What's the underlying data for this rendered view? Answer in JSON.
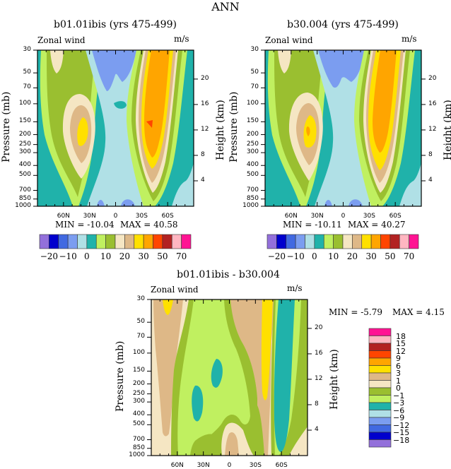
{
  "page_title": "ANN",
  "chart_data": [
    {
      "type": "contour",
      "title": "b01.01ibis (yrs 475-499)",
      "left_label": "Zonal wind",
      "right_label": "m/s",
      "ylabel": "Pressure (mb)",
      "y2label": "Height (km)",
      "x_ticks": [
        "60N",
        "30N",
        "0",
        "30S",
        "60S"
      ],
      "y_ticks": [
        30,
        50,
        70,
        100,
        150,
        200,
        250,
        300,
        400,
        500,
        700,
        850,
        1000
      ],
      "y2_ticks": [
        20,
        16,
        12,
        8,
        4
      ],
      "ylim": [
        1000,
        30
      ],
      "y_scale": "log",
      "min_text": "MIN = -10.04",
      "max_text": "MAX = 40.58",
      "colorbar_labels": [
        "-20",
        "-10",
        "0",
        "10",
        "20",
        "30",
        "50",
        "70"
      ]
    },
    {
      "type": "contour",
      "title": "b30.004 (yrs 475-499)",
      "left_label": "Zonal wind",
      "right_label": "m/s",
      "ylabel": "Pressure (mb)",
      "y2label": "Height (km)",
      "x_ticks": [
        "60N",
        "30N",
        "0",
        "30S",
        "60S"
      ],
      "y_ticks": [
        30,
        50,
        70,
        100,
        150,
        200,
        250,
        300,
        400,
        500,
        700,
        850,
        1000
      ],
      "y2_ticks": [
        20,
        16,
        12,
        8,
        4
      ],
      "ylim": [
        1000,
        30
      ],
      "y_scale": "log",
      "min_text": "MIN = -10.11",
      "max_text": "MAX = 40.27",
      "colorbar_labels": [
        "-20",
        "-10",
        "0",
        "10",
        "20",
        "30",
        "50",
        "70"
      ]
    },
    {
      "type": "contour",
      "title": "b01.01ibis - b30.004",
      "left_label": "Zonal wind",
      "right_label": "m/s",
      "ylabel": "Pressure (mb)",
      "y2label": "Height (km)",
      "x_ticks": [
        "60N",
        "30N",
        "0",
        "30S",
        "60S"
      ],
      "y_ticks": [
        30,
        50,
        70,
        100,
        150,
        200,
        250,
        300,
        400,
        500,
        700,
        850,
        1000
      ],
      "y2_ticks": [
        20,
        16,
        12,
        8,
        4
      ],
      "ylim": [
        1000,
        30
      ],
      "y_scale": "log",
      "min_text": "MIN = -5.79",
      "max_text": "MAX = 4.15",
      "colorbar_labels": [
        "18",
        "15",
        "12",
        "9",
        "6",
        "3",
        "1",
        "0",
        "-1",
        "-3",
        "-6",
        "-9",
        "-12",
        "-15",
        "-18"
      ]
    }
  ],
  "colors_abs": [
    "#9370db",
    "#0000cd",
    "#4169e1",
    "#7b9df0",
    "#b0e0e6",
    "#20b2aa",
    "#c0f060",
    "#9abf30",
    "#f5e6c3",
    "#deb887",
    "#ffe000",
    "#ffa500",
    "#ff4500",
    "#b22222",
    "#ffb6c1",
    "#ff1493"
  ]
}
